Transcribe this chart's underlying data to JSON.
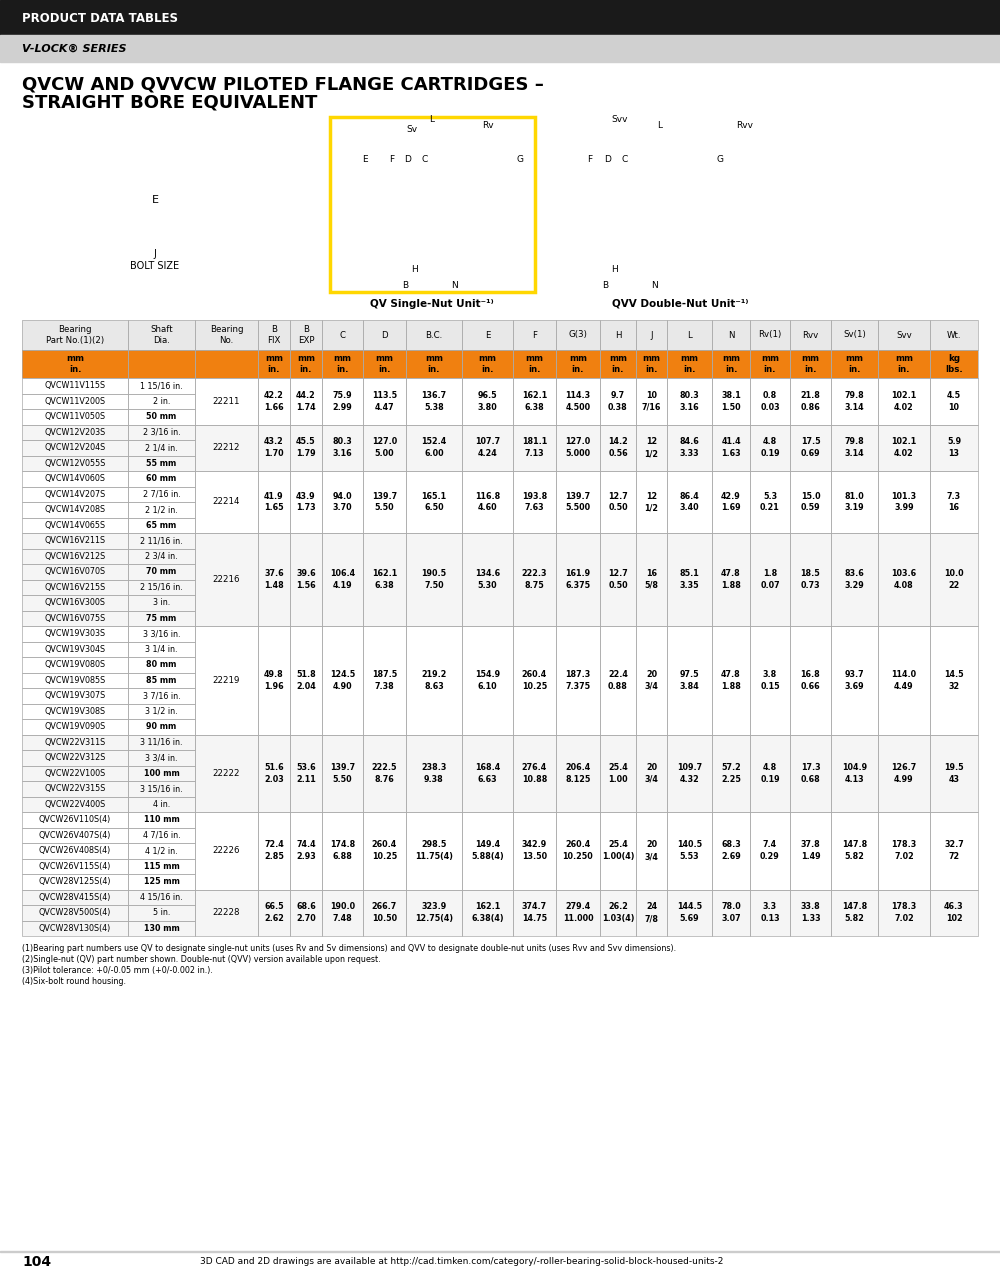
{
  "header_black": "PRODUCT DATA TABLES",
  "header_gray": "V-LOCK® SERIES",
  "title_line1": "QVCW AND QVVCW PILOTED FLANGE CARTRIDGES –",
  "title_line2": "STRAIGHT BORE EQUIVALENT",
  "col_headers": [
    "Bearing\nPart No.(1)(2)",
    "Shaft\nDia.",
    "Bearing\nNo.",
    "B\nFIX",
    "B\nEXP",
    "C",
    "D",
    "B.C.",
    "E",
    "F",
    "G(3)",
    "H",
    "J",
    "L",
    "N",
    "Rv(1)",
    "Rvv",
    "Sv(1)",
    "Svv",
    "Wt."
  ],
  "unit_row_mm": [
    "",
    "mm\nin.",
    "",
    "mm\nin.",
    "mm\nin.",
    "mm\nin.",
    "mm\nin.",
    "mm\nin.",
    "mm\nin.",
    "mm\nin.",
    "mm\nin.",
    "mm\nin.",
    "mm\nin.",
    "mm\nin.",
    "mm\nin.",
    "mm\nin.",
    "mm\nin.",
    "mm\nin.",
    "mm\nin.",
    "kg\nlbs."
  ],
  "groups": [
    {
      "bearing_no": "22211",
      "parts": [
        "QVCW11V115S",
        "QVCW11V200S",
        "QVCW11V050S"
      ],
      "shafts": [
        "1 15/16 in.",
        "2 in.",
        "50 mm"
      ],
      "data_mm": "42.2\n1.66\t44.2\n1.74\t75.9\n2.99\t113.5\n4.47\t136.7\n5.38\t96.5\n3.80\t162.1\n6.38\t114.3\n4.500\t9.7\n0.38\t10\n7/16\t80.3\n3.16\t38.1\n1.50\t0.8\n0.03\t21.8\n0.86\t79.8\n3.14\t102.1\n4.02\t4.5\n10"
    },
    {
      "bearing_no": "22212",
      "parts": [
        "QVCW12V203S",
        "QVCW12V204S",
        "QVCW12V055S"
      ],
      "shafts": [
        "2 3/16 in.",
        "2 1/4 in.",
        "55 mm"
      ],
      "data_mm": "43.2\n1.70\t45.5\n1.79\t80.3\n3.16\t127.0\n5.00\t152.4\n6.00\t107.7\n4.24\t181.1\n7.13\t127.0\n5.000\t14.2\n0.56\t12\n1/2\t84.6\n3.33\t41.4\n1.63\t4.8\n0.19\t17.5\n0.69\t79.8\n3.14\t102.1\n4.02\t5.9\n13"
    },
    {
      "bearing_no": "22214",
      "parts": [
        "QVCW14V060S",
        "QVCW14V207S",
        "QVCW14V208S",
        "QVCW14V065S"
      ],
      "shafts": [
        "60 mm",
        "2 7/16 in.",
        "2 1/2 in.",
        "65 mm"
      ],
      "data_mm": "41.9\n1.65\t43.9\n1.73\t94.0\n3.70\t139.7\n5.50\t165.1\n6.50\t116.8\n4.60\t193.8\n7.63\t139.7\n5.500\t12.7\n0.50\t12\n1/2\t86.4\n3.40\t42.9\n1.69\t5.3\n0.21\t15.0\n0.59\t81.0\n3.19\t101.3\n3.99\t7.3\n16"
    },
    {
      "bearing_no": "22216",
      "parts": [
        "QVCW16V211S",
        "QVCW16V212S",
        "QVCW16V070S",
        "QVCW16V215S",
        "QVCW16V300S",
        "QVCW16V075S"
      ],
      "shafts": [
        "2 11/16 in.",
        "2 3/4 in.",
        "70 mm",
        "2 15/16 in.",
        "3 in.",
        "75 mm"
      ],
      "data_mm": "37.6\n1.48\t39.6\n1.56\t106.4\n4.19\t162.1\n6.38\t190.5\n7.50\t134.6\n5.30\t222.3\n8.75\t161.9\n6.375\t12.7\n0.50\t16\n5/8\t85.1\n3.35\t47.8\n1.88\t1.8\n0.07\t18.5\n0.73\t83.6\n3.29\t103.6\n4.08\t10.0\n22"
    },
    {
      "bearing_no": "22219",
      "parts": [
        "QVCW19V303S",
        "QVCW19V304S",
        "QVCW19V080S",
        "QVCW19V085S",
        "QVCW19V307S",
        "QVCW19V308S",
        "QVCW19V090S"
      ],
      "shafts": [
        "3 3/16 in.",
        "3 1/4 in.",
        "80 mm",
        "85 mm",
        "3 7/16 in.",
        "3 1/2 in.",
        "90 mm"
      ],
      "data_mm": "49.8\n1.96\t51.8\n2.04\t124.5\n4.90\t187.5\n7.38\t219.2\n8.63\t154.9\n6.10\t260.4\n10.25\t187.3\n7.375\t22.4\n0.88\t20\n3/4\t97.5\n3.84\t47.8\n1.88\t3.8\n0.15\t16.8\n0.66\t93.7\n3.69\t114.0\n4.49\t14.5\n32"
    },
    {
      "bearing_no": "22222",
      "parts": [
        "QVCW22V311S",
        "QVCW22V312S",
        "QVCW22V100S",
        "QVCW22V315S",
        "QVCW22V400S"
      ],
      "shafts": [
        "3 11/16 in.",
        "3 3/4 in.",
        "100 mm",
        "3 15/16 in.",
        "4 in."
      ],
      "data_mm": "51.6\n2.03\t53.6\n2.11\t139.7\n5.50\t222.5\n8.76\t238.3\n9.38\t168.4\n6.63\t276.4\n10.88\t206.4\n8.125\t25.4\n1.00\t20\n3/4\t109.7\n4.32\t57.2\n2.25\t4.8\n0.19\t17.3\n0.68\t104.9\n4.13\t126.7\n4.99\t19.5\n43"
    },
    {
      "bearing_no": "22226",
      "parts": [
        "QVCW26V110S(4)",
        "QVCW26V407S(4)",
        "QVCW26V408S(4)",
        "QVCW26V115S(4)",
        "QVCW28V125S(4)"
      ],
      "shafts": [
        "110 mm",
        "4 7/16 in.",
        "4 1/2 in.",
        "115 mm",
        "125 mm"
      ],
      "data_mm": "72.4\n2.85\t74.4\n2.93\t174.8\n6.88\t260.4\n10.25\t298.5\n11.75(4)\t149.4\n5.88(4)\t342.9\n13.50\t260.4\n10.250\t25.4\n1.00(4)\t20\n3/4\t140.5\n5.53\t68.3\n2.69\t7.4\n0.29\t37.8\n1.49\t147.8\n5.82\t178.3\n7.02\t32.7\n72"
    },
    {
      "bearing_no": "22228",
      "parts": [
        "QVCW28V415S(4)",
        "QVCW28V500S(4)",
        "QVCW28V130S(4)"
      ],
      "shafts": [
        "4 15/16 in.",
        "5 in.",
        "130 mm"
      ],
      "data_mm": "66.5\n2.62\t68.6\n2.70\t190.0\n7.48\t266.7\n10.50\t323.9\n12.75(4)\t162.1\n6.38(4)\t374.7\n14.75\t279.4\n11.000\t26.2\n1.03(4)\t24\n7/8\t144.5\n5.69\t78.0\n3.07\t3.3\n0.13\t33.8\n1.33\t147.8\n5.82\t178.3\n7.02\t46.3\n102"
    }
  ],
  "footnotes": [
    "(1)Bearing part numbers use QV to designate single-nut units (uses Rv and Sv dimensions) and QVV to designate double-nut units (uses Rvv and Svv dimensions).",
    "(2)Single-nut (QV) part number shown. Double-nut (QVV) version available upon request.",
    "(3)Pilot tolerance: +0/-0.05 mm (+0/-0.002 in.).",
    "(4)Six-bolt round housing."
  ],
  "footer_page": "104",
  "footer_url": "3D CAD and 2D drawings are available at http://cad.timken.com/category/-roller-bearing-solid-block-housed-units-2",
  "orange": "#F08010",
  "black": "#000000",
  "dark_gray": "#3A3A3A",
  "light_gray": "#E8E8E8",
  "med_gray": "#C8C8C8",
  "header_bg": "#1A1A1A",
  "subheader_bg": "#D0D0D0"
}
